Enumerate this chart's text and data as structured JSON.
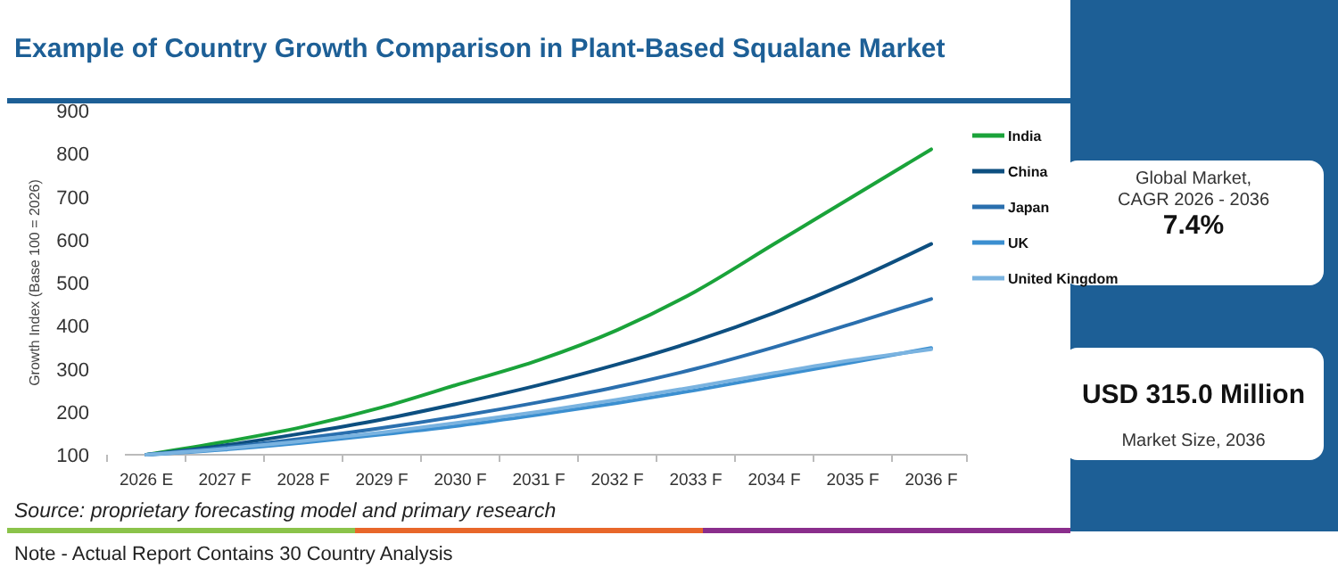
{
  "chart_data": {
    "type": "line",
    "title": "Example of Country Growth Comparison in Plant-Based Squalane Market",
    "ylabel": "Growth Index (Base 100 = 2026)",
    "categories": [
      "2026 E",
      "2027 F",
      "2028 F",
      "2029 F",
      "2030 F",
      "2031 F",
      "2032 F",
      "2033 F",
      "2034 F",
      "2035 F",
      "2036 F"
    ],
    "series": [
      {
        "name": "India",
        "color": "#1aa33a",
        "values": [
          100,
          130,
          165,
          210,
          265,
          320,
          390,
          480,
          590,
          700,
          810
        ]
      },
      {
        "name": "China",
        "color": "#0d4f80",
        "values": [
          100,
          122,
          150,
          182,
          220,
          262,
          310,
          365,
          430,
          505,
          590
        ]
      },
      {
        "name": "Japan",
        "color": "#2a6fae",
        "values": [
          100,
          117,
          138,
          162,
          190,
          222,
          258,
          300,
          350,
          405,
          462
        ]
      },
      {
        "name": "UK",
        "color": "#3b8fd0",
        "values": [
          100,
          112,
          128,
          147,
          168,
          193,
          220,
          250,
          283,
          315,
          348
        ]
      },
      {
        "name": "United Kingdom",
        "color": "#7ab3e0",
        "values": [
          100,
          114,
          132,
          152,
          175,
          200,
          228,
          258,
          290,
          320,
          345
        ]
      }
    ],
    "ylim": [
      100,
      900
    ],
    "yticks": [
      100,
      200,
      300,
      400,
      500,
      600,
      700,
      800,
      900
    ],
    "grid": false,
    "legend": "right",
    "marker": "none",
    "line_style": "solid",
    "annotations": [
      "Global Market, CAGR 2026 - 2036",
      "7.4%",
      "USD 315.0 Million",
      "Market Size, 2036",
      "Source: proprietary forecasting model and primary research",
      "Note - Actual Report Contains 30 Country Analysis"
    ]
  }
}
